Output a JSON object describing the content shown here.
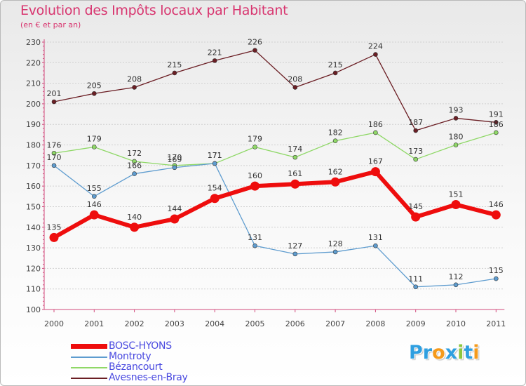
{
  "title": "Evolution des Impôts locaux par Habitant",
  "subtitle": "(en € et par an)",
  "logo": {
    "letters": [
      {
        "char": "P",
        "color": "#2f9fe0"
      },
      {
        "char": "r",
        "color": "#2f9fe0"
      },
      {
        "char": "o",
        "color": "#f59a1b"
      },
      {
        "char": "x",
        "color": "#2f9fe0"
      },
      {
        "char": "i",
        "color": "#8cc63f"
      },
      {
        "char": "t",
        "color": "#2f9fe0"
      },
      {
        "char": "i",
        "color": "#f59a1b"
      }
    ]
  },
  "chart_data": {
    "type": "line",
    "title": "Evolution des Impôts locaux par Habitant",
    "subtitle": "(en € et par an)",
    "xlabel": "",
    "ylabel": "",
    "categories": [
      "2000",
      "2001",
      "2002",
      "2003",
      "2004",
      "2005",
      "2006",
      "2007",
      "2008",
      "2009",
      "2010",
      "2011"
    ],
    "ylim": [
      100,
      230
    ],
    "yticks": [
      100,
      110,
      120,
      130,
      140,
      150,
      160,
      170,
      180,
      190,
      200,
      210,
      220,
      230
    ],
    "grid": true,
    "legend_position": "bottom-left",
    "series": [
      {
        "name": "Avesnes-en-Bray",
        "color": "#6b1e24",
        "values": [
          201,
          205,
          208,
          215,
          221,
          226,
          208,
          215,
          224,
          187,
          193,
          191
        ]
      },
      {
        "name": "Bézancourt",
        "color": "#8fd867",
        "values": [
          176,
          179,
          172,
          170,
          171,
          179,
          174,
          182,
          186,
          173,
          180,
          186
        ]
      },
      {
        "name": "Montroty",
        "color": "#5e9ccf",
        "values": [
          170,
          155,
          166,
          169,
          171,
          131,
          127,
          128,
          131,
          111,
          112,
          115
        ]
      },
      {
        "name": "BOSC-HYONS",
        "color": "#ee0d0d",
        "values": [
          135,
          146,
          140,
          144,
          154,
          160,
          161,
          162,
          167,
          145,
          151,
          146
        ]
      }
    ]
  }
}
